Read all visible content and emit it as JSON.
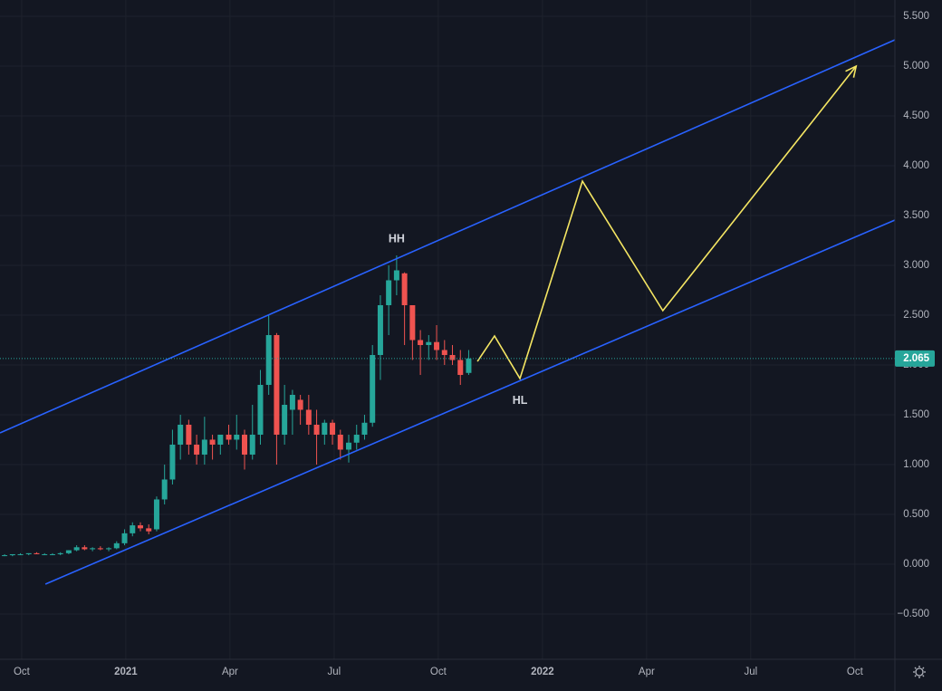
{
  "chart_data": {
    "type": "candlestick",
    "background": "#131722",
    "grid": true,
    "up_color": "#26a69a",
    "down_color": "#ef5350",
    "xlim": [
      2020.698,
      2022.846
    ],
    "ylim": [
      -0.955,
      5.664
    ],
    "xticks": [
      {
        "value": 2020.75,
        "label": "Oct"
      },
      2021,
      {
        "value": 2021.25,
        "label": "Apr"
      },
      {
        "value": 2021.5,
        "label": "Jul"
      },
      {
        "value": 2021.75,
        "label": "Oct"
      },
      2022,
      {
        "value": 2022.25,
        "label": "Apr"
      },
      {
        "value": 2022.5,
        "label": "Jul"
      },
      {
        "value": 2022.75,
        "label": "Oct"
      }
    ],
    "yticks": [
      {
        "value": -0.5,
        "label": "−0.500"
      },
      {
        "value": 0,
        "label": "0.000"
      },
      {
        "value": 0.5,
        "label": "0.500"
      },
      {
        "value": 1,
        "label": "1.000"
      },
      {
        "value": 1.5,
        "label": "1.500"
      },
      {
        "value": 2,
        "label": "2.000"
      },
      {
        "value": 2.5,
        "label": "2.500"
      },
      {
        "value": 3,
        "label": "3.000"
      },
      {
        "value": 3.5,
        "label": "3.500"
      },
      {
        "value": 4,
        "label": "4.000"
      },
      {
        "value": 4.5,
        "label": "4.500"
      },
      {
        "value": 5,
        "label": "5.000"
      },
      {
        "value": 5.5,
        "label": "5.500"
      }
    ],
    "x": [
      2020.709,
      2020.728,
      2020.747,
      2020.767,
      2020.786,
      2020.805,
      2020.824,
      2020.843,
      2020.863,
      2020.882,
      2020.901,
      2020.92,
      2020.939,
      2020.959,
      2020.978,
      2020.997,
      2021.016,
      2021.035,
      2021.055,
      2021.074,
      2021.093,
      2021.112,
      2021.131,
      2021.151,
      2021.17,
      2021.189,
      2021.208,
      2021.227,
      2021.247,
      2021.266,
      2021.285,
      2021.304,
      2021.323,
      2021.343,
      2021.362,
      2021.381,
      2021.4,
      2021.419,
      2021.439,
      2021.458,
      2021.477,
      2021.496,
      2021.515,
      2021.535,
      2021.554,
      2021.573,
      2021.592,
      2021.611,
      2021.631,
      2021.65,
      2021.669,
      2021.688,
      2021.707,
      2021.727,
      2021.746,
      2021.765,
      2021.784,
      2021.803,
      2021.823
    ],
    "open": [
      0.09,
      0.09,
      0.1,
      0.1,
      0.11,
      0.1,
      0.1,
      0.1,
      0.11,
      0.14,
      0.17,
      0.15,
      0.16,
      0.15,
      0.16,
      0.21,
      0.31,
      0.39,
      0.36,
      0.35,
      0.65,
      0.85,
      1.2,
      1.4,
      1.2,
      1.1,
      1.25,
      1.2,
      1.3,
      1.25,
      1.3,
      1.1,
      1.3,
      1.8,
      2.3,
      1.3,
      1.55,
      1.65,
      1.55,
      1.4,
      1.3,
      1.42,
      1.3,
      1.15,
      1.22,
      1.3,
      1.42,
      2.1,
      2.6,
      2.85,
      2.92,
      2.6,
      2.25,
      2.2,
      2.23,
      2.15,
      2.1,
      2.05,
      1.92
    ],
    "high": [
      0.1,
      0.1,
      0.11,
      0.11,
      0.12,
      0.11,
      0.11,
      0.12,
      0.14,
      0.19,
      0.19,
      0.17,
      0.18,
      0.17,
      0.23,
      0.35,
      0.42,
      0.42,
      0.4,
      0.68,
      1.0,
      1.35,
      1.5,
      1.45,
      1.3,
      1.48,
      1.3,
      1.3,
      1.4,
      1.5,
      1.35,
      1.6,
      1.95,
      2.5,
      2.32,
      1.8,
      1.75,
      1.7,
      1.7,
      1.55,
      1.45,
      1.45,
      1.35,
      1.3,
      1.4,
      1.5,
      2.2,
      2.7,
      3.0,
      3.1,
      2.93,
      2.6,
      2.35,
      2.3,
      2.4,
      2.25,
      2.2,
      2.15,
      2.15
    ],
    "low": [
      0.08,
      0.08,
      0.09,
      0.09,
      0.1,
      0.09,
      0.09,
      0.09,
      0.1,
      0.13,
      0.14,
      0.13,
      0.14,
      0.13,
      0.15,
      0.19,
      0.28,
      0.33,
      0.3,
      0.33,
      0.6,
      0.8,
      1.05,
      1.1,
      1.0,
      1.0,
      1.05,
      1.1,
      1.2,
      1.15,
      0.95,
      1.05,
      1.2,
      1.7,
      1.0,
      1.2,
      1.3,
      1.4,
      1.3,
      1.0,
      1.2,
      1.2,
      1.05,
      1.02,
      1.15,
      1.25,
      1.38,
      1.85,
      2.3,
      2.7,
      2.2,
      2.05,
      1.9,
      2.05,
      2.05,
      2.0,
      2.0,
      1.8,
      1.9
    ],
    "close": [
      0.09,
      0.1,
      0.1,
      0.11,
      0.1,
      0.1,
      0.1,
      0.11,
      0.14,
      0.17,
      0.15,
      0.16,
      0.15,
      0.16,
      0.21,
      0.31,
      0.39,
      0.36,
      0.33,
      0.65,
      0.85,
      1.2,
      1.4,
      1.2,
      1.1,
      1.25,
      1.2,
      1.3,
      1.25,
      1.3,
      1.1,
      1.3,
      1.8,
      2.3,
      1.3,
      1.6,
      1.7,
      1.55,
      1.4,
      1.3,
      1.42,
      1.3,
      1.15,
      1.22,
      1.3,
      1.42,
      2.1,
      2.6,
      2.85,
      2.95,
      2.6,
      2.25,
      2.2,
      2.23,
      2.15,
      2.1,
      2.05,
      1.9,
      2.065
    ],
    "last_price": 2.065,
    "lines": [
      {
        "color": "#2962ff",
        "x": [
          2020.698,
          2022.846
        ],
        "y": [
          1.318,
          5.264
        ]
      },
      {
        "color": "#2962ff",
        "x": [
          2020.807,
          2022.846
        ],
        "y": [
          -0.2,
          3.455
        ]
      },
      {
        "color": "#f5e663",
        "arrow": true,
        "x": [
          2021.844,
          2021.885,
          2021.946,
          2022.096,
          2022.289,
          2022.753
        ],
        "y": [
          2.036,
          2.291,
          1.864,
          3.845,
          2.545,
          5.0
        ]
      }
    ],
    "annotations": [
      {
        "text": "HH"
      },
      {
        "text": "HL"
      }
    ]
  }
}
